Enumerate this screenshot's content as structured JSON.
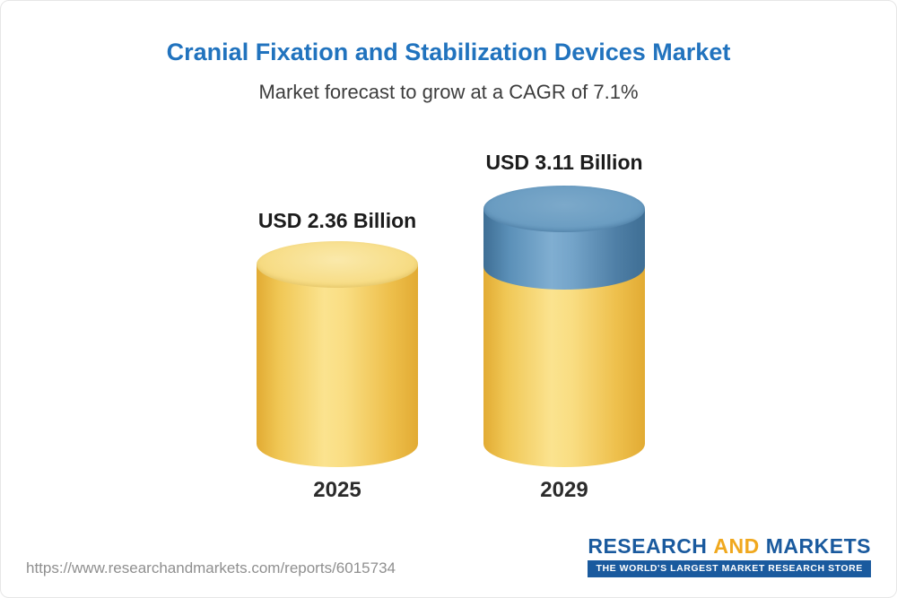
{
  "chart_data": {
    "type": "bar",
    "style": "3d-cylinder-bars",
    "title": "Cranial Fixation and Stabilization Devices Market",
    "subtitle": "Market forecast to grow at a CAGR of 7.1%",
    "categories": [
      "2025",
      "2029"
    ],
    "values": [
      2.36,
      3.11
    ],
    "unit": "USD Billion",
    "value_labels": [
      "USD 2.36 Billion",
      "USD 3.11 Billion"
    ],
    "cagr_percent": 7.1,
    "segments_2029": {
      "base_gold": 2.36,
      "growth_blue": 0.75
    },
    "ylim": [
      0,
      3.5
    ],
    "grid": false,
    "legend": false,
    "colors": {
      "bar_gold": "#f3cd62",
      "bar_blue": "#6397be",
      "title_blue": "#2173be",
      "label_dark": "#1c1c1c"
    }
  },
  "footer": {
    "url": "https://www.researchandmarkets.com/reports/6015734",
    "logo": {
      "word1": "RESEARCH",
      "word2": "AND",
      "word3": "MARKETS",
      "tagline": "THE WORLD'S LARGEST MARKET RESEARCH STORE"
    }
  }
}
